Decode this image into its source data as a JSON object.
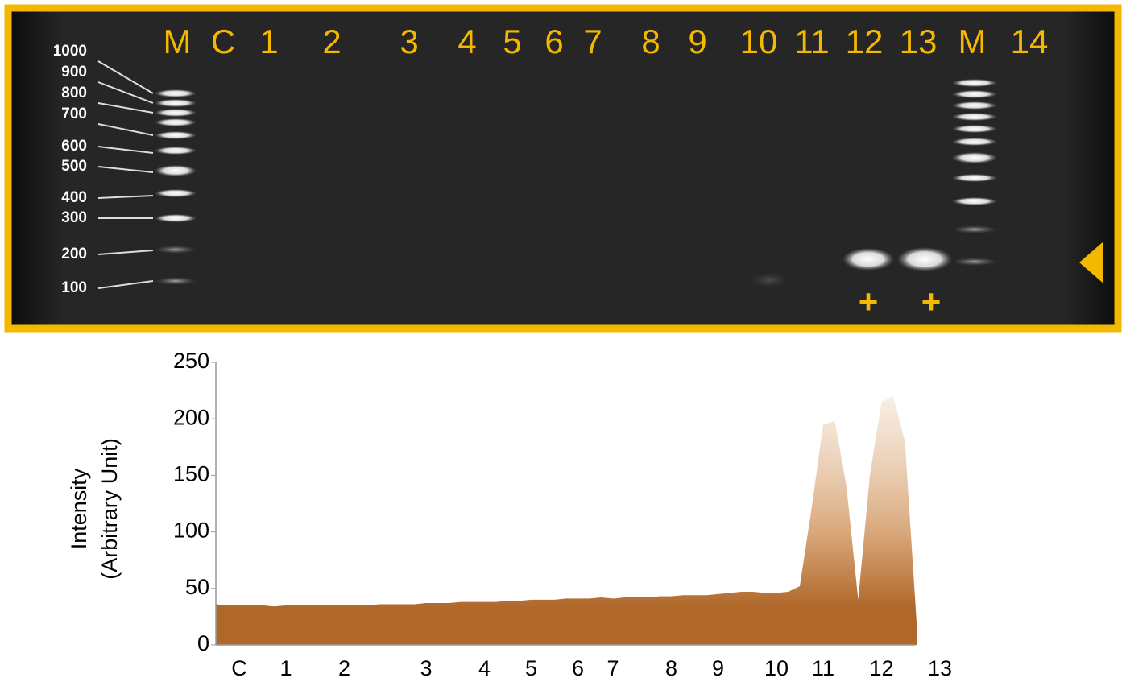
{
  "gel": {
    "lanes": [
      "M",
      "C",
      "1",
      "2",
      "3",
      "4",
      "5",
      "6",
      "7",
      "8",
      "9",
      "10",
      "11",
      "12",
      "13",
      "M",
      "14"
    ],
    "markers": [
      "1000",
      "900",
      "800",
      "700",
      "600",
      "500",
      "400",
      "300",
      "200",
      "100"
    ],
    "positive_marks": [
      "+",
      "+"
    ]
  },
  "chart_data": {
    "type": "area",
    "ylabel": [
      "Intensity",
      "(Arbitrary Unit)"
    ],
    "categories": [
      null,
      null,
      "C",
      null,
      null,
      null,
      "1",
      null,
      null,
      null,
      null,
      "2",
      null,
      null,
      null,
      null,
      null,
      null,
      "3",
      null,
      null,
      null,
      null,
      "4",
      null,
      null,
      null,
      "5",
      null,
      null,
      null,
      "6",
      null,
      null,
      "7",
      null,
      null,
      null,
      null,
      "8",
      null,
      null,
      null,
      "9",
      null,
      null,
      null,
      null,
      "10",
      null,
      null,
      null,
      "11",
      null,
      null,
      null,
      null,
      "12",
      null,
      null,
      null,
      null,
      "13"
    ],
    "series": [
      {
        "color": "#b0682a",
        "values": [
          36,
          35,
          35,
          35,
          35,
          34,
          35,
          35,
          35,
          35,
          35,
          35,
          35,
          35,
          36,
          36,
          36,
          36,
          37,
          37,
          37,
          38,
          38,
          38,
          38,
          39,
          39,
          40,
          40,
          40,
          41,
          41,
          41,
          42,
          41,
          42,
          42,
          42,
          43,
          43,
          44,
          44,
          44,
          45,
          46,
          47,
          47,
          46,
          46,
          47,
          52,
          120,
          195,
          198,
          140,
          40,
          150,
          215,
          220,
          180,
          20,
          null,
          null
        ]
      }
    ],
    "ylim": [
      0,
      250
    ],
    "yticks": [
      0,
      50,
      100,
      150,
      200,
      250
    ],
    "grid": false
  }
}
